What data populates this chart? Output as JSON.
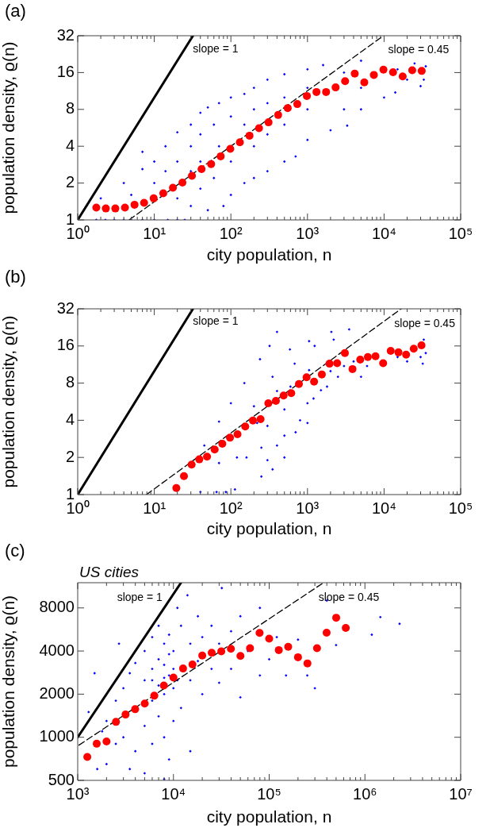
{
  "chart_data": [
    {
      "type": "scatter",
      "title": "(a)",
      "xlabel": "city population, n",
      "ylabel": "population density, ϱ(n)",
      "log": "xy",
      "grid": false,
      "legend": false,
      "xlim": [
        1,
        100000
      ],
      "ylim": [
        1,
        32
      ],
      "xticks": [
        {
          "value": 1,
          "label": "10⁰"
        },
        {
          "value": 2,
          "label": null
        },
        {
          "value": 3,
          "label": null
        },
        {
          "value": 4,
          "label": null
        },
        {
          "value": 5,
          "label": null
        },
        {
          "value": 6,
          "label": null
        },
        {
          "value": 7,
          "label": null
        },
        {
          "value": 8,
          "label": null
        },
        {
          "value": 9,
          "label": null
        },
        {
          "value": 10,
          "label": "10¹"
        },
        {
          "value": 20,
          "label": null
        },
        {
          "value": 30,
          "label": null
        },
        {
          "value": 40,
          "label": null
        },
        {
          "value": 50,
          "label": null
        },
        {
          "value": 60,
          "label": null
        },
        {
          "value": 70,
          "label": null
        },
        {
          "value": 80,
          "label": null
        },
        {
          "value": 90,
          "label": null
        },
        {
          "value": 100,
          "label": "10²"
        },
        {
          "value": 200,
          "label": null
        },
        {
          "value": 300,
          "label": null
        },
        {
          "value": 400,
          "label": null
        },
        {
          "value": 500,
          "label": null
        },
        {
          "value": 600,
          "label": null
        },
        {
          "value": 700,
          "label": null
        },
        {
          "value": 800,
          "label": null
        },
        {
          "value": 900,
          "label": null
        },
        {
          "value": 1000,
          "label": "10³"
        },
        {
          "value": 2000,
          "label": null
        },
        {
          "value": 3000,
          "label": null
        },
        {
          "value": 4000,
          "label": null
        },
        {
          "value": 5000,
          "label": null
        },
        {
          "value": 6000,
          "label": null
        },
        {
          "value": 7000,
          "label": null
        },
        {
          "value": 8000,
          "label": null
        },
        {
          "value": 9000,
          "label": null
        },
        {
          "value": 10000,
          "label": "10⁴"
        },
        {
          "value": 20000,
          "label": null
        },
        {
          "value": 30000,
          "label": null
        },
        {
          "value": 40000,
          "label": null
        },
        {
          "value": 50000,
          "label": null
        },
        {
          "value": 60000,
          "label": null
        },
        {
          "value": 70000,
          "label": null
        },
        {
          "value": 80000,
          "label": null
        },
        {
          "value": 90000,
          "label": null
        },
        {
          "value": 100000,
          "label": "10⁵"
        }
      ],
      "yticks": [
        1,
        2,
        4,
        8,
        16,
        32
      ],
      "annotations": [
        "slope = 1",
        "slope = 0.45"
      ],
      "series": [
        {
          "type": "scatter",
          "marker": "diamond",
          "color": "#0000ff",
          "x": [
            1.75,
            2.3,
            3,
            4,
            5,
            7,
            10,
            15,
            20,
            25,
            2,
            4,
            5,
            7,
            7,
            10,
            10,
            14,
            14,
            20,
            20,
            20,
            30,
            30,
            30,
            30,
            40,
            40,
            40,
            40,
            50,
            50,
            60,
            60,
            70,
            70,
            80,
            100,
            100,
            100,
            100,
            150,
            150,
            150,
            200,
            200,
            200,
            200,
            300,
            300,
            300,
            300,
            500,
            500,
            500,
            500,
            700,
            1000,
            1000,
            1000,
            1000,
            1600,
            2000,
            3000,
            3000,
            3300,
            5000,
            5000,
            5000,
            10000,
            14000,
            15000,
            20000,
            25000,
            30000,
            35000,
            33000
          ],
          "values": [
            1,
            1,
            1,
            1,
            1,
            1,
            1,
            1,
            1,
            1,
            1.5,
            2,
            1.6,
            2.6,
            3.6,
            2,
            3,
            4,
            2.5,
            5.2,
            3,
            1.5,
            6,
            4,
            2.5,
            1.3,
            7.5,
            5,
            3,
            1.8,
            8.3,
            1.2,
            6,
            2.2,
            9,
            4,
            1.3,
            10,
            7,
            3,
            1.6,
            10.7,
            6,
            2,
            12,
            8,
            4,
            2.2,
            14,
            9,
            5,
            2.5,
            15.5,
            10,
            6,
            3,
            3.3,
            17,
            12,
            8,
            4.5,
            18.4,
            5.4,
            16,
            8,
            5.9,
            20,
            12,
            8,
            10,
            11,
            17,
            14,
            19,
            12.4,
            18,
            14
          ]
        },
        {
          "type": "line",
          "marker": "none",
          "line_style": "solid",
          "color": "#000000",
          "x": [
            1,
            32
          ],
          "values": [
            1,
            32
          ]
        },
        {
          "type": "line",
          "marker": "none",
          "line_style": "dashed",
          "color": "#000000",
          "x": [
            4.7,
            9800
          ],
          "values": [
            1,
            32
          ]
        },
        {
          "type": "scatter",
          "marker": "circle",
          "color": "#ff0000",
          "x": [
            1.75,
            2.33,
            3.1,
            4.14,
            5.52,
            7.36,
            9.82,
            13.1,
            17.5,
            23.3,
            31,
            41.4,
            55.2,
            73.6,
            98.2,
            131,
            175,
            233,
            310,
            414,
            552,
            736,
            982,
            1310,
            1750,
            2330,
            3100,
            4140,
            5520,
            7360,
            9820,
            13100,
            17500,
            23300,
            31000
          ],
          "values": [
            1.26,
            1.24,
            1.24,
            1.26,
            1.33,
            1.38,
            1.5,
            1.65,
            1.83,
            2.02,
            2.29,
            2.6,
            2.86,
            3.31,
            3.81,
            4.31,
            4.88,
            5.62,
            6.27,
            7.2,
            8.2,
            8.84,
            10.3,
            11.1,
            11.1,
            12.1,
            13.6,
            15.7,
            13.3,
            15.3,
            16.9,
            16.1,
            14.9,
            16.7,
            16.5
          ]
        }
      ]
    },
    {
      "type": "scatter",
      "title": "(b)",
      "xlabel": "city population, n",
      "ylabel": "population density, ϱ(n)",
      "log": "xy",
      "grid": false,
      "legend": false,
      "xlim": [
        1,
        100000
      ],
      "ylim": [
        1,
        32
      ],
      "xticks": [
        {
          "value": 1,
          "label": "10⁰"
        },
        {
          "value": 2,
          "label": null
        },
        {
          "value": 3,
          "label": null
        },
        {
          "value": 4,
          "label": null
        },
        {
          "value": 5,
          "label": null
        },
        {
          "value": 6,
          "label": null
        },
        {
          "value": 7,
          "label": null
        },
        {
          "value": 8,
          "label": null
        },
        {
          "value": 9,
          "label": null
        },
        {
          "value": 10,
          "label": "10¹"
        },
        {
          "value": 20,
          "label": null
        },
        {
          "value": 30,
          "label": null
        },
        {
          "value": 40,
          "label": null
        },
        {
          "value": 50,
          "label": null
        },
        {
          "value": 60,
          "label": null
        },
        {
          "value": 70,
          "label": null
        },
        {
          "value": 80,
          "label": null
        },
        {
          "value": 90,
          "label": null
        },
        {
          "value": 100,
          "label": "10²"
        },
        {
          "value": 200,
          "label": null
        },
        {
          "value": 300,
          "label": null
        },
        {
          "value": 400,
          "label": null
        },
        {
          "value": 500,
          "label": null
        },
        {
          "value": 600,
          "label": null
        },
        {
          "value": 700,
          "label": null
        },
        {
          "value": 800,
          "label": null
        },
        {
          "value": 900,
          "label": null
        },
        {
          "value": 1000,
          "label": "10³"
        },
        {
          "value": 2000,
          "label": null
        },
        {
          "value": 3000,
          "label": null
        },
        {
          "value": 4000,
          "label": null
        },
        {
          "value": 5000,
          "label": null
        },
        {
          "value": 6000,
          "label": null
        },
        {
          "value": 7000,
          "label": null
        },
        {
          "value": 8000,
          "label": null
        },
        {
          "value": 9000,
          "label": null
        },
        {
          "value": 10000,
          "label": "10⁴"
        },
        {
          "value": 20000,
          "label": null
        },
        {
          "value": 30000,
          "label": null
        },
        {
          "value": 40000,
          "label": null
        },
        {
          "value": 50000,
          "label": null
        },
        {
          "value": 60000,
          "label": null
        },
        {
          "value": 70000,
          "label": null
        },
        {
          "value": 80000,
          "label": null
        },
        {
          "value": 90000,
          "label": null
        },
        {
          "value": 100000,
          "label": "10⁵"
        }
      ],
      "yticks": [
        1,
        2,
        4,
        8,
        16,
        32
      ],
      "annotations": [
        "slope = 1",
        "slope = 0.45"
      ],
      "series": [
        {
          "type": "scatter",
          "marker": "diamond",
          "color": "#0000ff",
          "x": [
            45,
            70,
            100,
            150,
            240,
            40,
            70,
            200,
            350,
            590,
            65,
            120,
            220,
            400,
            680,
            86,
            160,
            300,
            600,
            1240,
            113,
            250,
            500,
            1050,
            250,
            300,
            350,
            400,
            500,
            500,
            700,
            800,
            1000,
            1000,
            1200,
            1500,
            1800,
            2000,
            2500,
            3000,
            4000,
            5000,
            6000,
            15000,
            20000,
            30000,
            33000,
            35000,
            32000,
            400,
            320,
            1050,
            2050,
            3500,
            2200
          ],
          "values": [
            2.5,
            3.9,
            5.5,
            8,
            12.5,
            1.05,
            1.8,
            5.2,
            9,
            15,
            1.05,
            2,
            3.8,
            6.9,
            11.5,
            1.05,
            2,
            3.6,
            7.5,
            16,
            1.1,
            2.4,
            4.9,
            10.2,
            1.4,
            1.9,
            1.6,
            2.5,
            2,
            3,
            3.2,
            4,
            3.8,
            5.5,
            6,
            7,
            7.5,
            10,
            9,
            11,
            12,
            9,
            11,
            13,
            12,
            13,
            18,
            14,
            11.5,
            20.8,
            16,
            17.5,
            20.8,
            21.8,
            18
          ]
        },
        {
          "type": "line",
          "marker": "none",
          "line_style": "solid",
          "color": "#000000",
          "x": [
            1,
            32
          ],
          "values": [
            1,
            32
          ]
        },
        {
          "type": "line",
          "marker": "none",
          "line_style": "dashed",
          "color": "#000000",
          "x": [
            7.9,
            16700
          ],
          "values": [
            1,
            32
          ]
        },
        {
          "type": "scatter",
          "marker": "circle",
          "color": "#ff0000",
          "x": [
            19.4,
            24.4,
            30.7,
            38.7,
            48.8,
            61.4,
            77.3,
            97.3,
            122,
            154,
            194,
            244,
            308,
            387,
            488,
            614,
            773,
            973,
            1220,
            1540,
            1940,
            2440,
            3080,
            3870,
            4880,
            6140,
            7730,
            9730,
            12200,
            15400,
            19400,
            24400,
            30800
          ],
          "values": [
            1.13,
            1.41,
            1.75,
            1.93,
            2.03,
            2.32,
            2.58,
            2.89,
            3.08,
            3.56,
            3.98,
            4.08,
            5.49,
            5.74,
            6.34,
            6.63,
            7.87,
            8.91,
            8.23,
            9.41,
            11.5,
            11.6,
            14,
            10.4,
            12.4,
            13,
            13.2,
            11.6,
            14.6,
            14.2,
            13.6,
            15.2,
            16.2
          ]
        }
      ]
    },
    {
      "type": "scatter",
      "title": "(c)",
      "subtitle": "US cities",
      "xlabel": "city population, n",
      "ylabel": "population density, ϱ(n)",
      "log": "xy",
      "grid": false,
      "legend": false,
      "xlim": [
        1000,
        10000000
      ],
      "ylim": [
        500,
        12000
      ],
      "xticks": [
        {
          "value": 1000,
          "label": "10³"
        },
        {
          "value": 2000,
          "label": null
        },
        {
          "value": 3000,
          "label": null
        },
        {
          "value": 4000,
          "label": null
        },
        {
          "value": 5000,
          "label": null
        },
        {
          "value": 6000,
          "label": null
        },
        {
          "value": 7000,
          "label": null
        },
        {
          "value": 8000,
          "label": null
        },
        {
          "value": 9000,
          "label": null
        },
        {
          "value": 10000,
          "label": "10⁴"
        },
        {
          "value": 20000,
          "label": null
        },
        {
          "value": 30000,
          "label": null
        },
        {
          "value": 40000,
          "label": null
        },
        {
          "value": 50000,
          "label": null
        },
        {
          "value": 60000,
          "label": null
        },
        {
          "value": 70000,
          "label": null
        },
        {
          "value": 80000,
          "label": null
        },
        {
          "value": 90000,
          "label": null
        },
        {
          "value": 100000,
          "label": "10⁵"
        },
        {
          "value": 200000,
          "label": null
        },
        {
          "value": 300000,
          "label": null
        },
        {
          "value": 400000,
          "label": null
        },
        {
          "value": 500000,
          "label": null
        },
        {
          "value": 600000,
          "label": null
        },
        {
          "value": 700000,
          "label": null
        },
        {
          "value": 800000,
          "label": null
        },
        {
          "value": 900000,
          "label": null
        },
        {
          "value": 1000000,
          "label": "10⁶"
        },
        {
          "value": 2000000,
          "label": null
        },
        {
          "value": 3000000,
          "label": null
        },
        {
          "value": 4000000,
          "label": null
        },
        {
          "value": 5000000,
          "label": null
        },
        {
          "value": 6000000,
          "label": null
        },
        {
          "value": 7000000,
          "label": null
        },
        {
          "value": 8000000,
          "label": null
        },
        {
          "value": 9000000,
          "label": null
        },
        {
          "value": 10000000,
          "label": "10⁷"
        }
      ],
      "yticks": [
        500,
        1000,
        2000,
        4000,
        8000
      ],
      "annotations": [
        "slope = 1",
        "slope = 0.45"
      ],
      "series": [
        {
          "type": "scatter",
          "marker": "diamond",
          "color": "#0000ff",
          "x": [
            1300,
            1500,
            1600,
            1800,
            2000,
            2000,
            2500,
            2500,
            2700,
            3000,
            3000,
            3500,
            3500,
            4000,
            4000,
            5000,
            5000,
            5000,
            5000,
            6000,
            6000,
            6000,
            6000,
            7000,
            7000,
            7000,
            8000,
            8000,
            8000,
            8000,
            8000,
            9000,
            9000,
            9000,
            10000,
            10000,
            10000,
            11000,
            12000,
            12000,
            14000,
            15000,
            15000,
            15000,
            18000,
            18000,
            20000,
            20000,
            25000,
            25000,
            30000,
            30000,
            32000,
            40000,
            40000,
            50000,
            50000,
            60000,
            80000,
            80000,
            100000,
            120000,
            150000,
            200000,
            250000,
            300000,
            400000,
            500000,
            1450000,
            1180000,
            2300000,
            6000,
            7000,
            9000,
            10000,
            8000,
            11000
          ],
          "values": [
            1500,
            2800,
            600,
            1100,
            1300,
            650,
            1800,
            900,
            4500,
            2200,
            1000,
            2800,
            600,
            3300,
            800,
            4000,
            2500,
            1200,
            560,
            5000,
            3000,
            1800,
            900,
            6000,
            2300,
            1400,
            4500,
            3200,
            2000,
            1000,
            510,
            5200,
            2700,
            700,
            4000,
            2200,
            1300,
            8000,
            6000,
            1600,
            9800,
            4500,
            2500,
            800,
            7000,
            3400,
            5000,
            2000,
            6000,
            3000,
            4500,
            2400,
            11000,
            5500,
            3000,
            7000,
            1900,
            4000,
            8000,
            2700,
            3500,
            5000,
            2700,
            4800,
            2700,
            2200,
            9000,
            4400,
            6900,
            5200,
            6200,
            2500,
            3500,
            3800,
            3000,
            2600,
            2500
          ]
        },
        {
          "type": "line",
          "marker": "none",
          "line_style": "solid",
          "color": "#000000",
          "x": [
            1000,
            12000
          ],
          "values": [
            1000,
            12000
          ]
        },
        {
          "type": "line",
          "marker": "none",
          "line_style": "dashed",
          "color": "#000000",
          "x": [
            1030,
            370000
          ],
          "values": [
            881,
            12000
          ]
        },
        {
          "type": "scatter",
          "marker": "circle",
          "color": "#ff0000",
          "x": [
            1260,
            1580,
            2000,
            2510,
            3160,
            3980,
            5010,
            6310,
            7940,
            10000,
            12600,
            15800,
            20000,
            25100,
            31600,
            39800,
            50100,
            63100,
            79400,
            100000,
            126000,
            158000,
            200000,
            251000,
            316000,
            398000,
            501000,
            631000
          ],
          "values": [
            728,
            901,
            934,
            1280,
            1440,
            1570,
            1720,
            1950,
            2300,
            2610,
            3020,
            3220,
            3720,
            3890,
            3980,
            4150,
            3700,
            4190,
            5350,
            4880,
            4060,
            4280,
            3620,
            3280,
            4190,
            5370,
            6830,
            5800
          ]
        }
      ]
    }
  ]
}
